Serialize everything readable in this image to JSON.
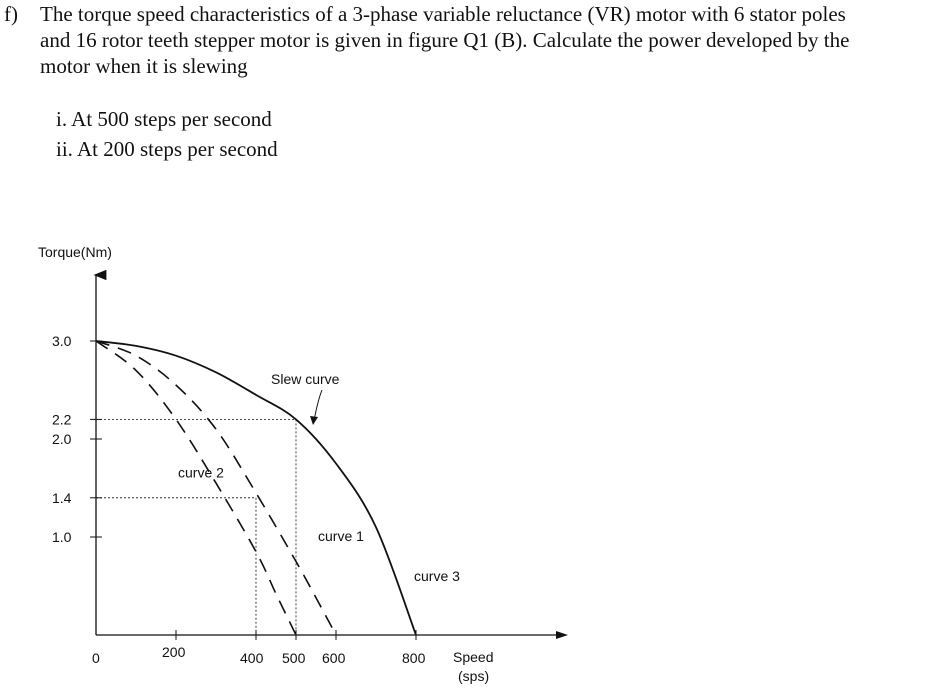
{
  "question": {
    "label": "f)",
    "lines": [
      "The torque speed characteristics of a 3-phase variable reluctance (VR) motor with 6 stator poles",
      "and 16 rotor teeth  stepper motor is given in figure Q1 (B). Calculate the power developed by the",
      "motor when it is slewing"
    ],
    "subparts": [
      "i. At 500 steps per second",
      "ii. At 200 steps per second"
    ]
  },
  "chart_data": {
    "type": "line",
    "ylabel": "Torque(Nm)",
    "xlabel": "Speed",
    "xlabel_unit": "(sps)",
    "x_ticks": [
      "0",
      "200",
      "400",
      "500",
      "600",
      "800"
    ],
    "y_ticks": [
      "3.0",
      "2.2",
      "2.0",
      "1.4",
      "1.0"
    ],
    "xlim": [
      0,
      900
    ],
    "ylim": [
      0,
      3.6
    ],
    "series": [
      {
        "name": "curve 3",
        "label_text": "curve 3",
        "style": "solid",
        "x": [
          0,
          100,
          200,
          300,
          400,
          500,
          600,
          700,
          800
        ],
        "y": [
          3.0,
          2.95,
          2.85,
          2.68,
          2.45,
          2.2,
          1.75,
          1.1,
          0.0
        ]
      },
      {
        "name": "curve 1",
        "label_text": "curve 1",
        "style": "dashed",
        "x": [
          0,
          100,
          200,
          300,
          400,
          500,
          550,
          600
        ],
        "y": [
          3.0,
          2.85,
          2.55,
          2.1,
          1.45,
          0.75,
          0.38,
          0.0
        ]
      },
      {
        "name": "curve 2",
        "label_text": "curve 2",
        "style": "dashed",
        "x": [
          0,
          100,
          200,
          300,
          400,
          450,
          500
        ],
        "y": [
          3.0,
          2.7,
          2.2,
          1.55,
          0.85,
          0.42,
          0.0
        ]
      }
    ],
    "annotation": "Slew curve",
    "reference_points": [
      {
        "x": 500,
        "y": 2.2
      },
      {
        "x": 400,
        "y": 1.4
      }
    ]
  }
}
